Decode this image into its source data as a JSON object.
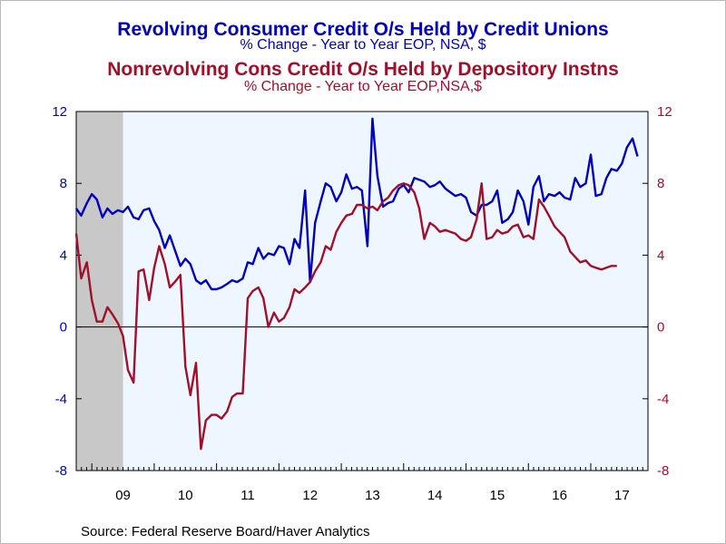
{
  "chart_data": {
    "type": "line",
    "titles": [
      {
        "title": "Revolving Consumer Credit O/s Held by Credit Unions",
        "subtitle": "% Change - Year to Year     EOP, NSA, $"
      },
      {
        "title": "Nonrevolving Cons Credit O/s Held by Depository Instns",
        "subtitle": "% Change - Year to Year     EOP,NSA,$"
      }
    ],
    "xlabel": "",
    "ylabel_left": "",
    "ylabel_right": "",
    "x_range": [
      2008.75,
      2017.917
    ],
    "x_ticks": [
      "09",
      "10",
      "11",
      "12",
      "13",
      "14",
      "15",
      "16",
      "17"
    ],
    "y_left": {
      "range": [
        -8,
        12
      ],
      "ticks": [
        -8,
        -4,
        0,
        4,
        8,
        12
      ]
    },
    "y_right": {
      "range": [
        -8,
        12
      ],
      "ticks": [
        -8,
        -4,
        0,
        4,
        8,
        12
      ]
    },
    "grid": false,
    "recession_shading": [
      2008.75,
      2009.5
    ],
    "series": [
      {
        "axis": "left",
        "color": "#0000bb",
        "points": [
          [
            2008.75,
            6.6
          ],
          [
            2008.83,
            6.2
          ],
          [
            2008.92,
            6.9
          ],
          [
            2009.0,
            7.4
          ],
          [
            2009.08,
            7.1
          ],
          [
            2009.17,
            6.1
          ],
          [
            2009.25,
            6.6
          ],
          [
            2009.33,
            6.3
          ],
          [
            2009.42,
            6.5
          ],
          [
            2009.5,
            6.4
          ],
          [
            2009.58,
            6.7
          ],
          [
            2009.67,
            6.1
          ],
          [
            2009.75,
            6.0
          ],
          [
            2009.83,
            6.5
          ],
          [
            2009.92,
            6.6
          ],
          [
            2010.0,
            5.9
          ],
          [
            2010.08,
            5.4
          ],
          [
            2010.17,
            4.4
          ],
          [
            2010.25,
            5.1
          ],
          [
            2010.33,
            4.3
          ],
          [
            2010.42,
            3.4
          ],
          [
            2010.5,
            3.8
          ],
          [
            2010.58,
            3.5
          ],
          [
            2010.67,
            2.6
          ],
          [
            2010.75,
            2.4
          ],
          [
            2010.83,
            2.6
          ],
          [
            2010.92,
            2.1
          ],
          [
            2011.0,
            2.1
          ],
          [
            2011.08,
            2.2
          ],
          [
            2011.17,
            2.4
          ],
          [
            2011.25,
            2.6
          ],
          [
            2011.33,
            2.5
          ],
          [
            2011.42,
            2.7
          ],
          [
            2011.5,
            3.6
          ],
          [
            2011.58,
            3.5
          ],
          [
            2011.67,
            4.4
          ],
          [
            2011.75,
            3.8
          ],
          [
            2011.83,
            4.1
          ],
          [
            2011.92,
            4.0
          ],
          [
            2012.0,
            4.5
          ],
          [
            2012.08,
            4.4
          ],
          [
            2012.17,
            3.5
          ],
          [
            2012.25,
            4.9
          ],
          [
            2012.33,
            4.4
          ],
          [
            2012.42,
            7.6
          ],
          [
            2012.5,
            2.5
          ],
          [
            2012.58,
            5.8
          ],
          [
            2012.67,
            7.0
          ],
          [
            2012.75,
            8.0
          ],
          [
            2012.83,
            7.8
          ],
          [
            2012.92,
            7.0
          ],
          [
            2013.0,
            7.5
          ],
          [
            2013.08,
            8.5
          ],
          [
            2013.17,
            7.7
          ],
          [
            2013.25,
            7.8
          ],
          [
            2013.33,
            7.6
          ],
          [
            2013.42,
            4.5
          ],
          [
            2013.5,
            11.6
          ],
          [
            2013.58,
            8.4
          ],
          [
            2013.67,
            6.7
          ],
          [
            2013.75,
            6.9
          ],
          [
            2013.83,
            7.0
          ],
          [
            2013.92,
            7.7
          ],
          [
            2014.0,
            7.9
          ],
          [
            2014.08,
            7.5
          ],
          [
            2014.17,
            8.3
          ],
          [
            2014.25,
            8.2
          ],
          [
            2014.33,
            8.1
          ],
          [
            2014.42,
            7.8
          ],
          [
            2014.5,
            7.9
          ],
          [
            2014.58,
            8.1
          ],
          [
            2014.67,
            7.7
          ],
          [
            2014.75,
            7.5
          ],
          [
            2014.83,
            7.3
          ],
          [
            2014.92,
            7.4
          ],
          [
            2015.0,
            7.2
          ],
          [
            2015.08,
            6.4
          ],
          [
            2015.17,
            6.2
          ],
          [
            2015.25,
            6.8
          ],
          [
            2015.33,
            6.8
          ],
          [
            2015.42,
            7.0
          ],
          [
            2015.5,
            7.6
          ],
          [
            2015.58,
            5.8
          ],
          [
            2015.67,
            6.0
          ],
          [
            2015.75,
            6.4
          ],
          [
            2015.83,
            7.6
          ],
          [
            2015.92,
            7.0
          ],
          [
            2016.0,
            5.7
          ],
          [
            2016.08,
            7.8
          ],
          [
            2016.17,
            8.4
          ],
          [
            2016.25,
            7.0
          ],
          [
            2016.33,
            7.4
          ],
          [
            2016.42,
            7.3
          ],
          [
            2016.5,
            7.5
          ],
          [
            2016.58,
            7.2
          ],
          [
            2016.67,
            7.1
          ],
          [
            2016.75,
            8.3
          ],
          [
            2016.83,
            7.8
          ],
          [
            2016.92,
            8.0
          ],
          [
            2017.0,
            9.6
          ],
          [
            2017.08,
            7.3
          ],
          [
            2017.17,
            7.4
          ],
          [
            2017.25,
            8.3
          ],
          [
            2017.33,
            8.8
          ],
          [
            2017.42,
            8.7
          ],
          [
            2017.5,
            9.1
          ],
          [
            2017.58,
            10.0
          ],
          [
            2017.67,
            10.5
          ],
          [
            2017.75,
            9.5
          ]
        ]
      },
      {
        "axis": "right",
        "color": "#a0102a",
        "points": [
          [
            2008.75,
            5.2
          ],
          [
            2008.83,
            2.7
          ],
          [
            2008.92,
            3.6
          ],
          [
            2009.0,
            1.5
          ],
          [
            2009.08,
            0.3
          ],
          [
            2009.17,
            0.3
          ],
          [
            2009.25,
            1.1
          ],
          [
            2009.33,
            0.7
          ],
          [
            2009.42,
            0.2
          ],
          [
            2009.5,
            -0.5
          ],
          [
            2009.58,
            -2.4
          ],
          [
            2009.67,
            -3.1
          ],
          [
            2009.75,
            3.1
          ],
          [
            2009.83,
            3.2
          ],
          [
            2009.92,
            1.5
          ],
          [
            2010.0,
            3.3
          ],
          [
            2010.08,
            4.5
          ],
          [
            2010.17,
            3.5
          ],
          [
            2010.25,
            2.2
          ],
          [
            2010.33,
            2.5
          ],
          [
            2010.42,
            2.9
          ],
          [
            2010.5,
            -2.2
          ],
          [
            2010.58,
            -3.8
          ],
          [
            2010.67,
            -2.0
          ],
          [
            2010.75,
            -6.8
          ],
          [
            2010.83,
            -5.2
          ],
          [
            2010.92,
            -4.9
          ],
          [
            2011.0,
            -4.9
          ],
          [
            2011.08,
            -5.1
          ],
          [
            2011.17,
            -4.7
          ],
          [
            2011.25,
            -3.9
          ],
          [
            2011.33,
            -3.7
          ],
          [
            2011.42,
            -3.7
          ],
          [
            2011.5,
            1.6
          ],
          [
            2011.58,
            2.0
          ],
          [
            2011.67,
            2.2
          ],
          [
            2011.75,
            1.6
          ],
          [
            2011.83,
            0.0
          ],
          [
            2011.92,
            0.8
          ],
          [
            2012.0,
            0.3
          ],
          [
            2012.08,
            0.5
          ],
          [
            2012.17,
            1.1
          ],
          [
            2012.25,
            2.1
          ],
          [
            2012.33,
            1.9
          ],
          [
            2012.42,
            2.2
          ],
          [
            2012.5,
            2.5
          ],
          [
            2012.58,
            3.1
          ],
          [
            2012.67,
            3.6
          ],
          [
            2012.75,
            4.5
          ],
          [
            2012.83,
            4.3
          ],
          [
            2012.92,
            5.3
          ],
          [
            2013.0,
            5.8
          ],
          [
            2013.08,
            6.2
          ],
          [
            2013.17,
            6.3
          ],
          [
            2013.25,
            6.8
          ],
          [
            2013.33,
            6.8
          ],
          [
            2013.42,
            6.6
          ],
          [
            2013.5,
            6.7
          ],
          [
            2013.58,
            6.5
          ],
          [
            2013.67,
            7.0
          ],
          [
            2013.75,
            7.2
          ],
          [
            2013.83,
            7.6
          ],
          [
            2013.92,
            7.9
          ],
          [
            2014.0,
            8.0
          ],
          [
            2014.08,
            7.9
          ],
          [
            2014.17,
            7.5
          ],
          [
            2014.25,
            6.6
          ],
          [
            2014.33,
            4.9
          ],
          [
            2014.42,
            5.8
          ],
          [
            2014.5,
            5.6
          ],
          [
            2014.58,
            5.3
          ],
          [
            2014.67,
            5.4
          ],
          [
            2014.75,
            5.3
          ],
          [
            2014.83,
            5.2
          ],
          [
            2014.92,
            4.9
          ],
          [
            2015.0,
            4.8
          ],
          [
            2015.08,
            5.0
          ],
          [
            2015.17,
            6.0
          ],
          [
            2015.25,
            8.0
          ],
          [
            2015.33,
            4.9
          ],
          [
            2015.42,
            5.0
          ],
          [
            2015.5,
            5.4
          ],
          [
            2015.58,
            5.2
          ],
          [
            2015.67,
            5.3
          ],
          [
            2015.75,
            5.6
          ],
          [
            2015.83,
            5.7
          ],
          [
            2015.92,
            5.0
          ],
          [
            2016.0,
            5.1
          ],
          [
            2016.08,
            4.9
          ],
          [
            2016.17,
            7.1
          ],
          [
            2016.25,
            6.7
          ],
          [
            2016.33,
            6.2
          ],
          [
            2016.42,
            5.6
          ],
          [
            2016.5,
            5.3
          ],
          [
            2016.58,
            5.0
          ],
          [
            2016.67,
            4.2
          ],
          [
            2016.75,
            3.9
          ],
          [
            2016.83,
            3.6
          ],
          [
            2016.92,
            3.7
          ],
          [
            2017.0,
            3.4
          ],
          [
            2017.08,
            3.3
          ],
          [
            2017.17,
            3.2
          ],
          [
            2017.25,
            3.3
          ],
          [
            2017.33,
            3.4
          ],
          [
            2017.42,
            3.4
          ]
        ]
      }
    ]
  },
  "source": "Source:  Federal Reserve Board/Haver Analytics"
}
